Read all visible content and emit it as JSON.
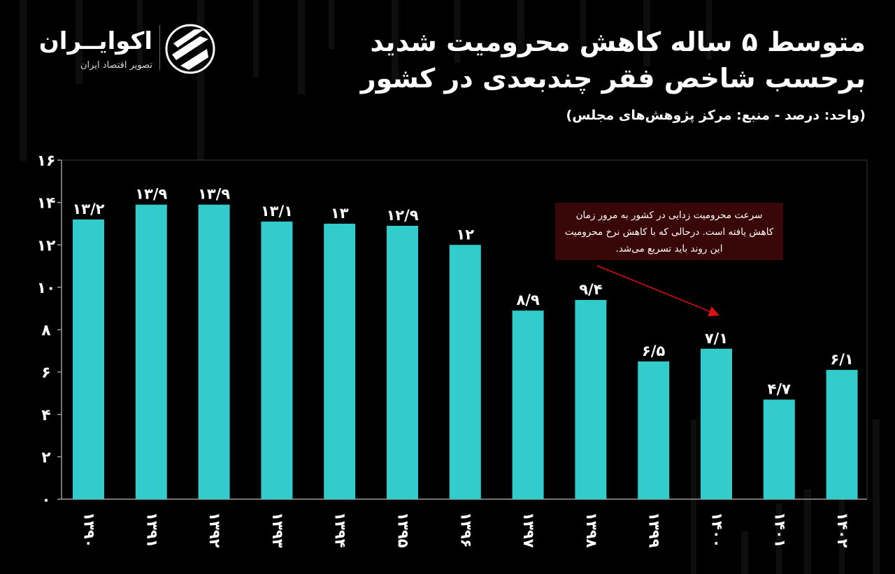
{
  "brand": {
    "name": "اکوایــران",
    "tagline": "تصویر اقتصاد ایران"
  },
  "header": {
    "title": "متوسط ۵ ساله کاهش محرومیت شدید برحسب شاخص فقر چندبعدی در کشور",
    "subtitle": "(واحد: درصد - منبع: مرکز پژوهش‌های مجلس)"
  },
  "callout": {
    "text": "سرعت محرومیت زدایی در کشور به مرور زمان کاهش یافته است. درحالی که با کاهش نرخ محرومیت این روند باید تسریع می‌شد."
  },
  "colors": {
    "bar": "#33cccc",
    "background": "#000000",
    "arrow": "#e01010",
    "callout_bg": "#3a0708"
  },
  "chart_data": {
    "type": "bar",
    "title": "متوسط ۵ ساله کاهش محرومیت شدید برحسب شاخص فقر چندبعدی در کشور",
    "xlabel": "",
    "ylabel": "",
    "ylim": [
      0,
      16
    ],
    "yticks": [
      0,
      2,
      4,
      6,
      8,
      10,
      12,
      14,
      16
    ],
    "ytick_labels": [
      "۰",
      "۲",
      "۴",
      "۶",
      "۸",
      "۱۰",
      "۱۲",
      "۱۴",
      "۱۶"
    ],
    "categories": [
      "۱۳۹۰",
      "۱۳۹۱",
      "۱۳۹۲",
      "۱۳۹۳",
      "۱۳۹۴",
      "۱۳۹۵",
      "۱۳۹۶",
      "۱۳۹۷",
      "۱۳۹۸",
      "۱۳۹۹",
      "۱۴۰۰",
      "۱۴۰۱",
      "۱۴۰۲"
    ],
    "values": [
      13.2,
      13.9,
      13.9,
      13.1,
      13,
      12.9,
      12,
      8.9,
      9.4,
      6.5,
      7.1,
      4.7,
      6.1
    ],
    "value_labels": [
      "۱۳/۲",
      "۱۳/۹",
      "۱۳/۹",
      "۱۳/۱",
      "۱۳",
      "۱۲/۹",
      "۱۲",
      "۸/۹",
      "۹/۴",
      "۶/۵",
      "۷/۱",
      "۴/۷",
      "۶/۱"
    ],
    "grid": false,
    "legend": "none"
  }
}
